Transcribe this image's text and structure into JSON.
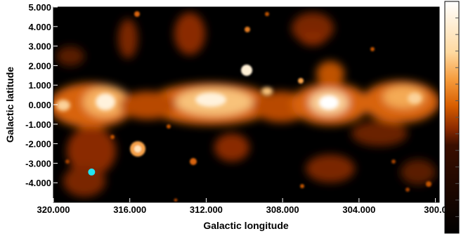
{
  "chart_data": {
    "type": "heatmap",
    "xlabel": "Galactic longitude",
    "ylabel": "Galactic latitude",
    "xlim": [
      320.0,
      299.8
    ],
    "ylim": [
      -5.0,
      5.0
    ],
    "x_ticks": [
      320.0,
      316.0,
      312.0,
      308.0,
      304.0,
      300.0
    ],
    "x_tick_labels": [
      "320.000",
      "316.000",
      "312.000",
      "308.000",
      "304.000",
      "300.0"
    ],
    "y_ticks": [
      5.0,
      4.0,
      3.0,
      2.0,
      1.0,
      0.0,
      -1.0,
      -2.0,
      -3.0,
      -4.0
    ],
    "y_tick_labels": [
      "5.000",
      "4.000",
      "3.000",
      "2.000",
      "1.000",
      "0.000",
      "-1.000",
      "-2.000",
      "-3.000",
      "-4.000"
    ],
    "colormap": [
      "#000000",
      "#3a0e00",
      "#8a2a00",
      "#d85e00",
      "#f59a3a",
      "#ffd9a0",
      "#ffffff"
    ],
    "colorbar": {
      "location": "right"
    },
    "marker": {
      "l": 318.0,
      "b": -3.45,
      "color": "#22e4f0"
    },
    "background": "#000000"
  }
}
